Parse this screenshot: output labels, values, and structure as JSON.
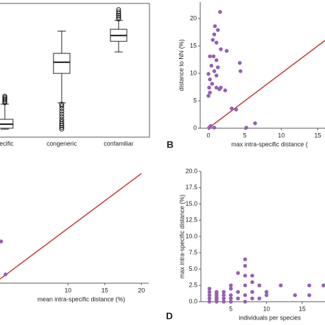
{
  "chart_data": [
    {
      "type": "box",
      "categories": [
        "pecific",
        "congeneric",
        "confamiliar"
      ],
      "ylim": [
        0,
        30
      ],
      "boxes": [
        {
          "min": 1.8,
          "q1": 2.0,
          "median": 2.9,
          "q3": 4.0,
          "max": 7.4,
          "outliers": [
            7.7,
            8.0,
            8.3,
            8.6,
            8.9,
            9.2
          ]
        },
        {
          "min": 7.7,
          "q1": 14.3,
          "median": 16.8,
          "q3": 18.8,
          "max": 23.8,
          "outliers": [
            1.8,
            2.2,
            2.6,
            3.0,
            3.5,
            4.0,
            4.6,
            5.2,
            5.8,
            6.4,
            7.0,
            7.4
          ]
        },
        {
          "min": 19.1,
          "q1": 21.5,
          "median": 22.8,
          "q3": 24.2,
          "max": 26.2,
          "outliers": [
            26.5,
            26.9,
            27.3,
            27.7,
            28.1,
            28.6
          ]
        }
      ]
    },
    {
      "type": "scatter",
      "panel": "B",
      "y_label": "distance to NN (%)",
      "x_label": "max intra-specific distance (",
      "color": "#9460b4",
      "diagonal": true,
      "diagonal_color": "#c0392b",
      "xlim": [
        -1.13,
        16
      ],
      "ylim": [
        0,
        23
      ],
      "xticks": [
        0,
        5,
        10,
        15
      ],
      "yticks": [
        0,
        5,
        10,
        15,
        20
      ],
      "x": [
        1.6,
        0.9,
        1.3,
        0.8,
        0.6,
        1.1,
        1.7,
        2.5,
        0.2,
        0.7,
        1.1,
        0.4,
        1.3,
        4.3,
        4.4,
        0.8,
        1.1,
        0,
        0.2,
        0.5,
        0.1,
        1.1,
        1.7,
        2.3,
        0.2,
        0,
        3.2,
        3.8,
        0.8,
        0.1,
        0.3,
        5.2,
        6.4,
        1.5
      ],
      "values": [
        21.2,
        18.6,
        17.9,
        17.1,
        16.1,
        15.6,
        14.4,
        14.1,
        13.1,
        13.1,
        12.4,
        11.4,
        11.1,
        11.9,
        10.4,
        10.4,
        9.6,
        9.9,
        8.9,
        8.1,
        7.4,
        7.4,
        7.4,
        6.9,
        6.5,
        5.9,
        3.6,
        3.4,
        0.1,
        0.1,
        0.4,
        0.1,
        0.9,
        7.1
      ]
    },
    {
      "type": "scatter",
      "x_label": "mean intra-specific distance (%)",
      "color": "#9460b4",
      "diagonal": true,
      "diagonal_color": "#c0392b",
      "xlim": [
        0.75,
        21
      ],
      "ylim": [
        0,
        20
      ],
      "xticks": [
        10,
        15,
        20
      ],
      "x": [
        0.9,
        1.5
      ],
      "values": [
        7.6,
        1.6
      ]
    },
    {
      "type": "scatter",
      "panel": "D",
      "y_label": "max intra-specific distance (%)",
      "x_label": "individuals per species",
      "color": "#9460b4",
      "xlim": [
        0.8,
        18.2
      ],
      "ylim": [
        0,
        20
      ],
      "xticks": [
        5,
        10,
        15
      ],
      "yticks": [
        {
          "value": 0,
          "label": "0.0"
        },
        2.5,
        {
          "value": 5,
          "label": "5.0"
        },
        7.5,
        {
          "value": 10,
          "label": "10.0"
        },
        12.5,
        {
          "value": 15,
          "label": "15.0"
        },
        17.5,
        {
          "value": 20,
          "label": "20.0"
        }
      ],
      "x": [
        2,
        2,
        2,
        2,
        2,
        3,
        3,
        3,
        3,
        3,
        3,
        4,
        4,
        4,
        4,
        5,
        5,
        5,
        5,
        5,
        6,
        6,
        6,
        7,
        7,
        7,
        7,
        7,
        7,
        8,
        8,
        8,
        8,
        9,
        9,
        10,
        10,
        12,
        14,
        16,
        16,
        18
      ],
      "values": [
        0,
        0.5,
        1,
        1.5,
        2,
        0,
        0.3,
        0.6,
        0.9,
        1.2,
        1.5,
        0,
        0.5,
        1,
        1.5,
        0,
        0.5,
        1,
        2,
        2.5,
        0.5,
        1.5,
        4.4,
        0,
        1,
        2.5,
        4,
        5.5,
        6.5,
        0.5,
        1.5,
        3,
        4,
        0.5,
        2.5,
        1,
        1.5,
        2.5,
        1,
        1,
        2.5,
        2.5
      ]
    }
  ]
}
